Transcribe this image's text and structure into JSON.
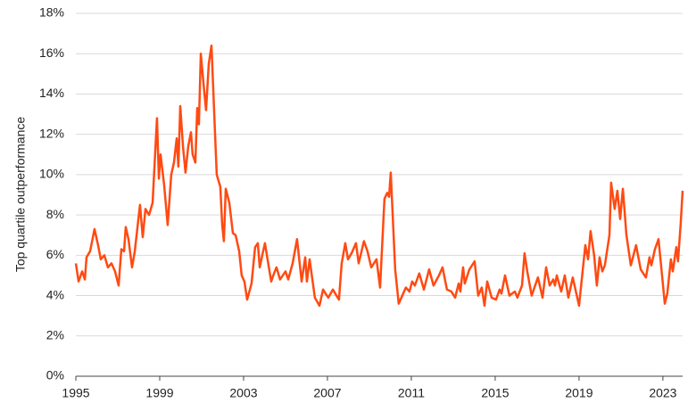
{
  "chart_data": {
    "type": "line",
    "ylabel": "Top quartile outperformance",
    "xlim": [
      1995,
      2023.94
    ],
    "xticks": [
      1995,
      1999,
      2003,
      2007,
      2011,
      2015,
      2019,
      2023
    ],
    "ylim": [
      0,
      18
    ],
    "yticks": [
      {
        "value": 0,
        "label": "0%"
      },
      {
        "value": 2,
        "label": "2%"
      },
      {
        "value": 4,
        "label": "4%"
      },
      {
        "value": 6,
        "label": "6%"
      },
      {
        "value": 8,
        "label": "8%"
      },
      {
        "value": 10,
        "label": "10%"
      },
      {
        "value": 12,
        "label": "12%"
      },
      {
        "value": 14,
        "label": "14%"
      },
      {
        "value": 16,
        "label": "16%"
      },
      {
        "value": 18,
        "label": "18%"
      }
    ],
    "grid": true,
    "x": [
      1995.0,
      1995.13,
      1995.3,
      1995.43,
      1995.51,
      1995.68,
      1995.89,
      1996.06,
      1996.19,
      1996.36,
      1996.53,
      1996.7,
      1996.87,
      1997.04,
      1997.17,
      1997.3,
      1997.38,
      1997.51,
      1997.68,
      1997.81,
      1998.06,
      1998.19,
      1998.32,
      1998.49,
      1998.66,
      1998.87,
      1998.96,
      1999.04,
      1999.21,
      1999.38,
      1999.55,
      1999.68,
      1999.81,
      1999.89,
      1999.98,
      2000.11,
      2000.23,
      2000.36,
      2000.49,
      2000.57,
      2000.7,
      2000.79,
      2000.87,
      2000.96,
      2001.09,
      2001.21,
      2001.34,
      2001.47,
      2001.64,
      2001.72,
      2001.89,
      2001.98,
      2002.06,
      2002.15,
      2002.32,
      2002.49,
      2002.62,
      2002.79,
      2002.91,
      2003.04,
      2003.17,
      2003.38,
      2003.55,
      2003.68,
      2003.77,
      2003.89,
      2004.02,
      2004.19,
      2004.32,
      2004.45,
      2004.57,
      2004.74,
      2005.0,
      2005.13,
      2005.34,
      2005.55,
      2005.77,
      2005.94,
      2006.02,
      2006.15,
      2006.4,
      2006.62,
      2006.79,
      2006.91,
      2007.04,
      2007.26,
      2007.43,
      2007.55,
      2007.68,
      2007.85,
      2007.98,
      2008.15,
      2008.36,
      2008.49,
      2008.74,
      2008.91,
      2009.09,
      2009.34,
      2009.51,
      2009.72,
      2009.85,
      2009.94,
      2010.02,
      2010.23,
      2010.4,
      2010.57,
      2010.74,
      2010.91,
      2011.04,
      2011.17,
      2011.38,
      2011.6,
      2011.85,
      2012.06,
      2012.32,
      2012.49,
      2012.7,
      2012.91,
      2013.09,
      2013.26,
      2013.34,
      2013.47,
      2013.55,
      2013.77,
      2014.02,
      2014.19,
      2014.36,
      2014.49,
      2014.62,
      2014.83,
      2015.04,
      2015.21,
      2015.3,
      2015.47,
      2015.68,
      2015.94,
      2016.06,
      2016.28,
      2016.4,
      2016.53,
      2016.74,
      2017.04,
      2017.26,
      2017.43,
      2017.6,
      2017.77,
      2017.85,
      2017.94,
      2018.15,
      2018.32,
      2018.49,
      2018.7,
      2019.0,
      2019.13,
      2019.3,
      2019.43,
      2019.55,
      2019.72,
      2019.85,
      2019.98,
      2020.11,
      2020.23,
      2020.45,
      2020.53,
      2020.7,
      2020.83,
      2020.96,
      2021.09,
      2021.26,
      2021.47,
      2021.72,
      2021.94,
      2022.19,
      2022.36,
      2022.45,
      2022.62,
      2022.79,
      2022.96,
      2023.09,
      2023.21,
      2023.38,
      2023.47,
      2023.64,
      2023.72,
      2023.85,
      2023.94
    ],
    "series": [
      {
        "color": "#ff4a12",
        "values": [
          5.6,
          4.7,
          5.2,
          4.8,
          5.9,
          6.2,
          7.3,
          6.5,
          5.8,
          6.0,
          5.4,
          5.6,
          5.2,
          4.5,
          6.3,
          6.2,
          7.4,
          6.8,
          5.4,
          6.2,
          8.5,
          6.9,
          8.3,
          8.0,
          8.6,
          12.8,
          9.8,
          11.0,
          9.5,
          7.5,
          10.0,
          10.6,
          11.8,
          10.4,
          13.4,
          11.4,
          10.1,
          11.4,
          12.1,
          11.0,
          10.6,
          13.3,
          12.5,
          16.0,
          14.5,
          13.2,
          15.5,
          16.4,
          12.0,
          10.0,
          9.4,
          7.5,
          6.7,
          9.3,
          8.6,
          7.1,
          7.0,
          6.2,
          5.0,
          4.7,
          3.8,
          4.6,
          6.4,
          6.6,
          5.4,
          6.0,
          6.6,
          5.5,
          4.7,
          5.1,
          5.4,
          4.8,
          5.2,
          4.8,
          5.6,
          6.8,
          4.7,
          5.9,
          4.7,
          5.8,
          3.9,
          3.5,
          4.3,
          4.1,
          3.9,
          4.3,
          4.0,
          3.8,
          5.6,
          6.6,
          5.8,
          6.1,
          6.6,
          5.6,
          6.7,
          6.2,
          5.4,
          5.8,
          4.4,
          8.8,
          9.1,
          8.9,
          10.1,
          5.3,
          3.6,
          4.0,
          4.4,
          4.2,
          4.7,
          4.5,
          5.1,
          4.3,
          5.3,
          4.5,
          5.0,
          5.4,
          4.3,
          4.2,
          3.9,
          4.6,
          4.2,
          5.4,
          4.6,
          5.3,
          5.7,
          4.0,
          4.4,
          3.5,
          4.7,
          3.9,
          3.8,
          4.3,
          4.1,
          5.0,
          4.0,
          4.2,
          3.9,
          4.5,
          6.1,
          5.2,
          4.0,
          4.9,
          3.9,
          5.4,
          4.5,
          4.8,
          4.5,
          5.0,
          4.2,
          5.0,
          3.9,
          4.9,
          3.5,
          4.8,
          6.5,
          5.8,
          7.2,
          6.0,
          4.5,
          5.9,
          5.2,
          5.5,
          7.0,
          9.6,
          8.3,
          9.2,
          7.8,
          9.3,
          7.0,
          5.5,
          6.5,
          5.3,
          4.9,
          5.9,
          5.5,
          6.3,
          6.8,
          5.0,
          3.6,
          4.1,
          5.8,
          5.2,
          6.4,
          5.7,
          7.6,
          9.2
        ]
      }
    ]
  }
}
